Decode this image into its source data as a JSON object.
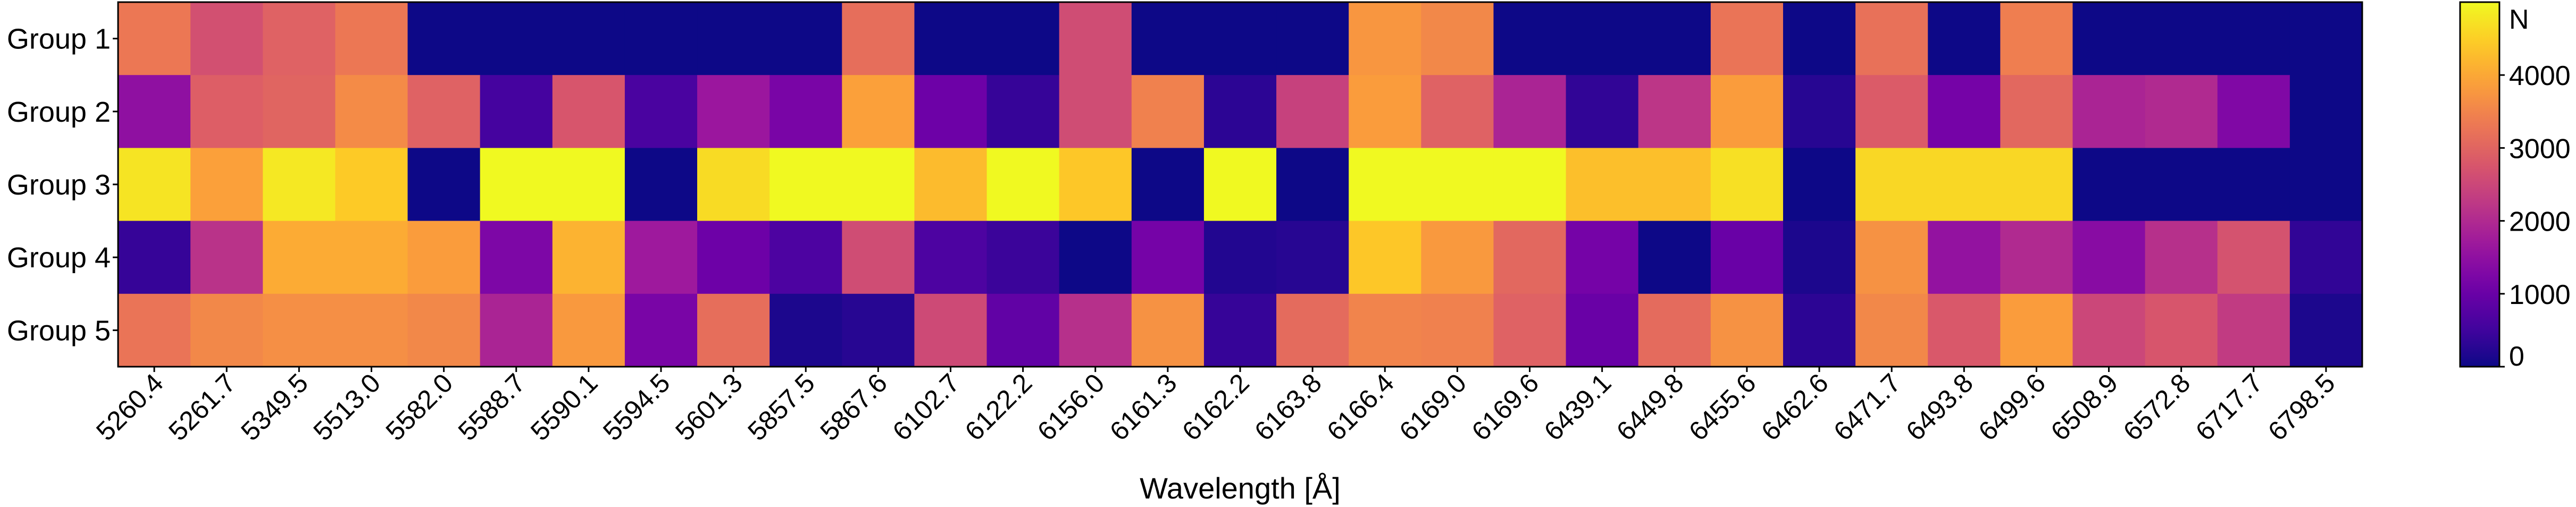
{
  "chart_data": {
    "type": "heatmap",
    "title": "",
    "xlabel": "Wavelength [Å]",
    "ylabel": "",
    "x_categories": [
      "5260.4",
      "5261.7",
      "5349.5",
      "5513.0",
      "5582.0",
      "5588.7",
      "5590.1",
      "5594.5",
      "5601.3",
      "5857.5",
      "5867.6",
      "6102.7",
      "6122.2",
      "6156.0",
      "6161.3",
      "6162.2",
      "6163.8",
      "6166.4",
      "6169.0",
      "6169.6",
      "6439.1",
      "6449.8",
      "6455.6",
      "6462.6",
      "6471.7",
      "6493.8",
      "6499.6",
      "6508.9",
      "6572.8",
      "6717.7",
      "6798.5"
    ],
    "y_categories": [
      "Group 1",
      "Group 2",
      "Group 3",
      "Group 4",
      "Group 5"
    ],
    "values": [
      [
        3300,
        2650,
        2950,
        3300,
        0,
        0,
        0,
        0,
        0,
        0,
        3150,
        0,
        0,
        2600,
        0,
        0,
        0,
        3750,
        3550,
        0,
        0,
        0,
        3250,
        0,
        3200,
        0,
        3400,
        0,
        0,
        0,
        0
      ],
      [
        1500,
        2900,
        3000,
        3600,
        2950,
        550,
        2750,
        600,
        1650,
        1200,
        3900,
        1050,
        400,
        2600,
        3450,
        300,
        2400,
        3850,
        2950,
        1900,
        350,
        2200,
        3850,
        250,
        2850,
        1150,
        3050,
        1900,
        2000,
        1300,
        0
      ],
      [
        4750,
        3900,
        4800,
        4450,
        0,
        5000,
        5000,
        0,
        4650,
        5000,
        5000,
        4250,
        5000,
        4400,
        0,
        5000,
        0,
        5000,
        5000,
        5000,
        4300,
        4300,
        4700,
        0,
        4600,
        4600,
        4600,
        0,
        0,
        0,
        0
      ],
      [
        400,
        2150,
        4050,
        4050,
        3850,
        1250,
        4150,
        1700,
        1050,
        650,
        2600,
        650,
        450,
        0,
        1150,
        200,
        250,
        4400,
        3800,
        3050,
        1150,
        0,
        1000,
        150,
        3700,
        1550,
        2000,
        1400,
        2100,
        2700,
        350
      ],
      [
        3250,
        3550,
        3650,
        3650,
        3550,
        1900,
        3800,
        1200,
        3150,
        150,
        250,
        2550,
        900,
        2100,
        3700,
        400,
        3100,
        3500,
        3450,
        2950,
        1000,
        3100,
        3700,
        300,
        3550,
        2800,
        3850,
        2500,
        2750,
        2300,
        150
      ]
    ],
    "zlim": [
      0,
      5000
    ],
    "colormap": "plasma",
    "colorbar": {
      "label": "N",
      "ticks": [
        0,
        1000,
        2000,
        3000,
        4000
      ],
      "tick_labels": [
        "0",
        "1000",
        "2000",
        "3000",
        "4000"
      ],
      "position": "right"
    },
    "grid": false
  }
}
